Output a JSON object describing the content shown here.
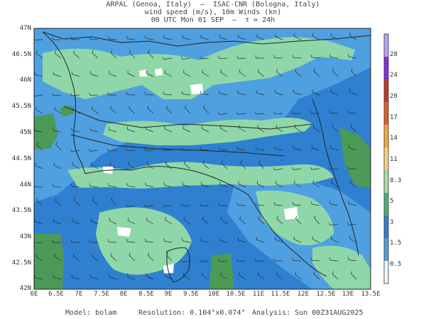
{
  "header": {
    "line1": "ARPAL (Genoa, Italy)  —  ISAC-CNR (Bologna, Italy)",
    "line2": "wind speed (m/s), 10m Winds (kn)",
    "line3": "00 UTC Mon 01 SEP  —  τ = 24h"
  },
  "map": {
    "lat_labels": [
      "47N",
      "46.5N",
      "46N",
      "45.5N",
      "45N",
      "44.5N",
      "44N",
      "43.5N",
      "43N",
      "42.5N",
      "42N"
    ],
    "lon_labels": [
      "6E",
      "6.5E",
      "7E",
      "7.5E",
      "8E",
      "8.5E",
      "9E",
      "9.5E",
      "10E",
      "10.5E",
      "11E",
      "11.5E",
      "12E",
      "12.5E",
      "13E",
      "13.5E"
    ]
  },
  "colorbar": {
    "labels": [
      "28",
      "24",
      "20",
      "17",
      "14",
      "11",
      "8.3",
      "5",
      "3",
      "1.5",
      "0.5"
    ],
    "colors": [
      "#b9a3ff",
      "#8a2be2",
      "#c0392b",
      "#e65c2c",
      "#f4a83a",
      "#f7d27a",
      "#a8dca8",
      "#4db27a",
      "#2f80d0",
      "#4fa0e0",
      "#eef6fb"
    ]
  },
  "footer": {
    "model": "Model: bolam",
    "resolution": "Resolution: 0.104°x0.074°",
    "analysis": "Analysis: Sun 00Z31AUG2025"
  },
  "colors": {
    "sea_blue": "#2f80d0",
    "mid_blue": "#4fa0e0",
    "light_green": "#8fd7a8",
    "dark_green": "#4c9a58",
    "white": "#ffffff"
  }
}
